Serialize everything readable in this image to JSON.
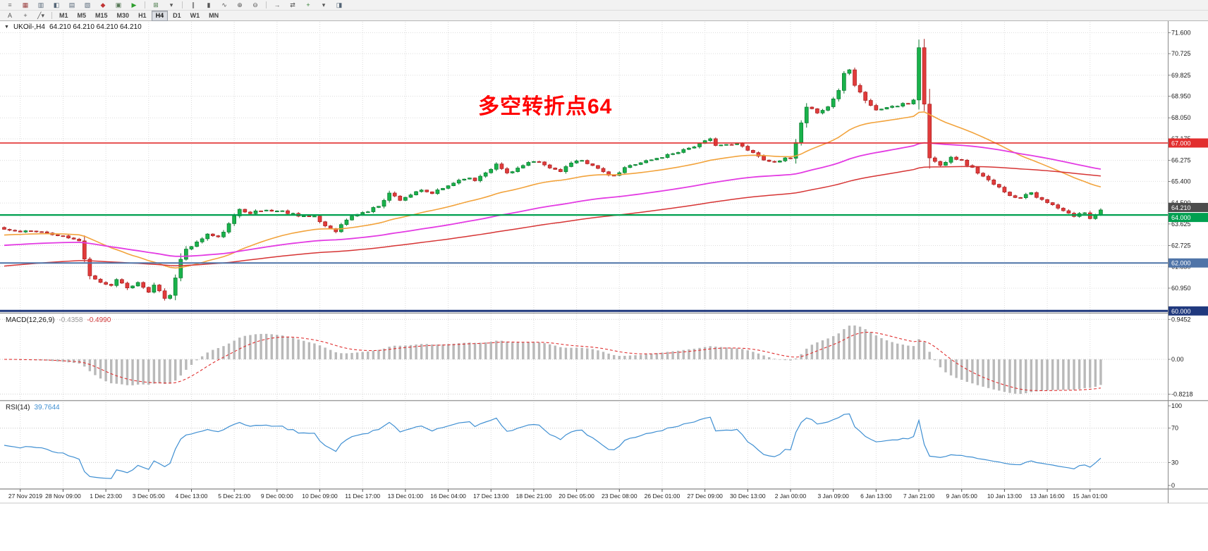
{
  "window": {
    "bg": "#ffffff"
  },
  "toolbar": {
    "standard_icons": [
      {
        "name": "toolbars-handle",
        "glyph": "≡",
        "color": "#777777"
      },
      {
        "name": "market-watch-icon",
        "glyph": "▦",
        "color": "#9a4040"
      },
      {
        "name": "data-window-icon",
        "glyph": "▥",
        "color": "#556677"
      },
      {
        "name": "navigator-icon",
        "glyph": "◧",
        "color": "#556677"
      },
      {
        "name": "terminal-icon",
        "glyph": "▤",
        "color": "#556677"
      },
      {
        "name": "strategy-tester-icon",
        "glyph": "▧",
        "color": "#556677"
      },
      {
        "name": "new-order-icon",
        "glyph": "◆",
        "color": "#c03434"
      },
      {
        "name": "metaeditor-icon",
        "glyph": "▣",
        "color": "#557755"
      },
      {
        "name": "autotrading-icon",
        "glyph": "▶",
        "color": "#2e9e2e"
      },
      {
        "sep": true
      },
      {
        "name": "new-chart-icon",
        "glyph": "⊞",
        "color": "#447744"
      },
      {
        "name": "profiles-dropdown-icon",
        "glyph": "▾",
        "color": "#555555"
      },
      {
        "sep": true
      },
      {
        "name": "bar-chart-icon",
        "glyph": "∥",
        "color": "#555555"
      },
      {
        "name": "candlestick-chart-icon",
        "glyph": "▮",
        "color": "#555555"
      },
      {
        "name": "line-chart-icon",
        "glyph": "∿",
        "color": "#555555"
      },
      {
        "name": "zoom-in-icon",
        "glyph": "⊕",
        "color": "#555555"
      },
      {
        "name": "zoom-out-icon",
        "glyph": "⊖",
        "color": "#555555"
      },
      {
        "sep": true
      },
      {
        "name": "auto-scroll-icon",
        "glyph": "→",
        "color": "#555555"
      },
      {
        "name": "chart-shift-icon",
        "glyph": "⇄",
        "color": "#555555"
      },
      {
        "name": "indicators-icon",
        "glyph": "+",
        "color": "#2e7e2e"
      },
      {
        "name": "periods-dropdown-icon",
        "glyph": "▾",
        "color": "#555555"
      },
      {
        "name": "templates-icon",
        "glyph": "◨",
        "color": "#556677"
      }
    ],
    "line_tools": [
      {
        "name": "text-label-tool",
        "label": "A"
      },
      {
        "name": "crosshair-tool",
        "label": "+"
      },
      {
        "name": "line-studies-dropdown",
        "label": "╱▾"
      }
    ],
    "timeframes": [
      "M1",
      "M5",
      "M15",
      "M30",
      "H1",
      "H4",
      "D1",
      "W1",
      "MN"
    ],
    "active_timeframe": "H4"
  },
  "chart": {
    "symbol": "UKOil-,H4",
    "ohlc": "64.210 64.210 64.210 64.210",
    "annotation": {
      "text": "多空转折点64",
      "color": "#ff0000"
    }
  },
  "indicators": {
    "macd_name": "MACD(12,26,9)",
    "macd_value": "-0.4358",
    "macd_signal_value": "-0.4990",
    "rsi_name": "RSI(14)",
    "rsi_value": "39.7644"
  },
  "chart_data": {
    "type": "candlestick",
    "symbol": "UKOil-",
    "period": "H4",
    "price_range": [
      59.95,
      72.05
    ],
    "price_ticks": [
      "71.600",
      "70.725",
      "69.825",
      "68.950",
      "68.050",
      "67.175",
      "66.275",
      "65.400",
      "64.500",
      "63.625",
      "62.725",
      "61.850",
      "60.950"
    ],
    "x_labels": [
      "27 Nov 2019",
      "28 Nov 09:00",
      "1 Dec 23:00",
      "3 Dec 05:00",
      "4 Dec 13:00",
      "5 Dec 21:00",
      "9 Dec 00:00",
      "10 Dec 09:00",
      "11 Dec 17:00",
      "13 Dec 01:00",
      "16 Dec 04:00",
      "17 Dec 13:00",
      "18 Dec 21:00",
      "20 Dec 05:00",
      "23 Dec 08:00",
      "26 Dec 01:00",
      "27 Dec 09:00",
      "30 Dec 13:00",
      "2 Jan 00:00",
      "3 Jan 09:00",
      "6 Jan 13:00",
      "7 Jan 21:00",
      "9 Jan 05:00",
      "10 Jan 13:00",
      "13 Jan 16:00",
      "15 Jan 01:00"
    ],
    "candles": {
      "count": 206,
      "first_label_index": 3,
      "label_step": 8,
      "noise_seed": 11,
      "close_anchors": [
        [
          0,
          63.4
        ],
        [
          3,
          63.28
        ],
        [
          6,
          63.35
        ],
        [
          9,
          63.18
        ],
        [
          12,
          63.05
        ],
        [
          14,
          62.9
        ],
        [
          15,
          62.2
        ],
        [
          16,
          61.5
        ],
        [
          18,
          61.2
        ],
        [
          20,
          61.05
        ],
        [
          21,
          61.35
        ],
        [
          23,
          60.95
        ],
        [
          25,
          61.15
        ],
        [
          27,
          60.75
        ],
        [
          28,
          61.1
        ],
        [
          30,
          60.55
        ],
        [
          31,
          60.7
        ],
        [
          32,
          61.35
        ],
        [
          33,
          62.1
        ],
        [
          34,
          62.6
        ],
        [
          36,
          62.85
        ],
        [
          38,
          63.2
        ],
        [
          40,
          63.05
        ],
        [
          42,
          63.6
        ],
        [
          44,
          64.25
        ],
        [
          46,
          64.1
        ],
        [
          49,
          64.2
        ],
        [
          52,
          64.15
        ],
        [
          55,
          64.0
        ],
        [
          58,
          63.9
        ],
        [
          60,
          63.55
        ],
        [
          62,
          63.35
        ],
        [
          64,
          63.8
        ],
        [
          66,
          64.05
        ],
        [
          68,
          64.15
        ],
        [
          70,
          64.4
        ],
        [
          72,
          64.9
        ],
        [
          74,
          64.65
        ],
        [
          76,
          64.85
        ],
        [
          78,
          65.0
        ],
        [
          80,
          64.9
        ],
        [
          82,
          65.1
        ],
        [
          84,
          65.35
        ],
        [
          86,
          65.55
        ],
        [
          88,
          65.45
        ],
        [
          90,
          65.8
        ],
        [
          92,
          66.1
        ],
        [
          94,
          65.75
        ],
        [
          96,
          65.95
        ],
        [
          98,
          66.15
        ],
        [
          100,
          66.2
        ],
        [
          102,
          65.95
        ],
        [
          104,
          65.85
        ],
        [
          106,
          66.15
        ],
        [
          108,
          66.25
        ],
        [
          110,
          66.1
        ],
        [
          112,
          65.75
        ],
        [
          114,
          65.6
        ],
        [
          116,
          65.95
        ],
        [
          118,
          66.15
        ],
        [
          120,
          66.25
        ],
        [
          122,
          66.35
        ],
        [
          124,
          66.5
        ],
        [
          126,
          66.65
        ],
        [
          128,
          66.8
        ],
        [
          130,
          66.95
        ],
        [
          132,
          67.15
        ],
        [
          133,
          66.95
        ],
        [
          135,
          66.9
        ],
        [
          137,
          66.95
        ],
        [
          139,
          66.75
        ],
        [
          141,
          66.45
        ],
        [
          143,
          66.2
        ],
        [
          145,
          66.3
        ],
        [
          147,
          66.35
        ],
        [
          148,
          67.0
        ],
        [
          149,
          67.8
        ],
        [
          150,
          68.45
        ],
        [
          152,
          68.3
        ],
        [
          154,
          68.5
        ],
        [
          156,
          69.2
        ],
        [
          157,
          69.9
        ],
        [
          158,
          70.1
        ],
        [
          159,
          69.45
        ],
        [
          161,
          68.8
        ],
        [
          163,
          68.35
        ],
        [
          165,
          68.5
        ],
        [
          167,
          68.55
        ],
        [
          169,
          68.65
        ],
        [
          170,
          68.8
        ],
        [
          171,
          71.0
        ],
        [
          172,
          68.6
        ],
        [
          173,
          66.4
        ],
        [
          175,
          66.05
        ],
        [
          177,
          66.45
        ],
        [
          179,
          66.25
        ],
        [
          181,
          65.95
        ],
        [
          183,
          65.6
        ],
        [
          185,
          65.25
        ],
        [
          187,
          65.0
        ],
        [
          189,
          64.7
        ],
        [
          190,
          64.75
        ],
        [
          191,
          64.9
        ],
        [
          192,
          64.95
        ],
        [
          194,
          64.6
        ],
        [
          196,
          64.4
        ],
        [
          198,
          64.15
        ],
        [
          200,
          63.95
        ],
        [
          202,
          64.12
        ],
        [
          203,
          63.88
        ],
        [
          204,
          64.05
        ],
        [
          205,
          64.21
        ]
      ]
    },
    "colors": {
      "up_fill": "#19b24b",
      "up_edge": "#0b7a2f",
      "down_fill": "#e13b3b",
      "down_edge": "#a81f1f",
      "grid": "#dcdcdc",
      "axis_text": "#1a1a1a",
      "separator": "#9a9a9a"
    },
    "horizontal_lines": [
      {
        "price": 67.0,
        "label": "67.000",
        "color": "#e22e2e",
        "width": 1.6
      },
      {
        "price": 64.0,
        "label": "64.000",
        "color": "#00a050",
        "width": 2.2
      },
      {
        "price": 62.0,
        "label": "62.000",
        "color": "#4f74a8",
        "width": 2
      },
      {
        "price": 60.0,
        "label": "60.000",
        "color": "#20397e",
        "width": 3
      }
    ],
    "current_price": {
      "value": "64.210",
      "price": 64.21,
      "tag_color": "#4c4c4c"
    },
    "moving_averages": [
      {
        "name": "ma-fast-orange",
        "period": 34,
        "seed": 63.15,
        "color": "#f2a33c",
        "width": 1.6
      },
      {
        "name": "ma-mid-magenta",
        "period": 90,
        "seed": 62.72,
        "color": "#e33be3",
        "width": 1.8
      },
      {
        "name": "ma-slow-red",
        "period": 150,
        "seed": 61.85,
        "color": "#d63434",
        "width": 1.5
      }
    ],
    "macd": {
      "fast": 12,
      "slow": 26,
      "signal_period": 9,
      "range": [
        -0.95,
        1.05
      ],
      "axis_labels": [
        "0.9452",
        "0.00",
        "-0.8218"
      ],
      "bar_color": "#b9b9b9",
      "signal_color": "#e03030"
    },
    "rsi": {
      "period": 14,
      "range": [
        0,
        100
      ],
      "axis_labels": [
        "100",
        "70",
        "30",
        "0"
      ],
      "dotted_levels": [
        70,
        30
      ],
      "line_color": "#3f8fd2"
    }
  }
}
